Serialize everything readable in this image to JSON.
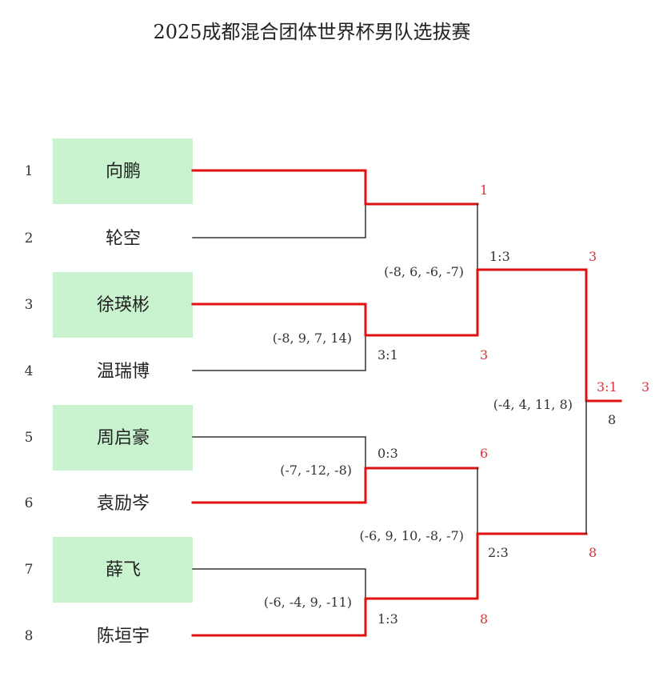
{
  "title": "2025成都混合团体世界杯男队选拔赛",
  "colors": {
    "winner_line": "#e01010",
    "loser_line": "#333333",
    "highlight_box": "#c9f2cf",
    "winner_text": "#d9343a"
  },
  "players": [
    {
      "seed": "1",
      "name": "向鹏",
      "highlight": true
    },
    {
      "seed": "2",
      "name": "轮空",
      "highlight": false
    },
    {
      "seed": "3",
      "name": "徐瑛彬",
      "highlight": true
    },
    {
      "seed": "4",
      "name": "温瑞博",
      "highlight": false
    },
    {
      "seed": "5",
      "name": "周启豪",
      "highlight": true
    },
    {
      "seed": "6",
      "name": "袁励岑",
      "highlight": false
    },
    {
      "seed": "7",
      "name": "薛飞",
      "highlight": true
    },
    {
      "seed": "8",
      "name": "陈垣宇",
      "highlight": false
    }
  ],
  "round1": [
    {
      "winner": "1",
      "score": "",
      "games": ""
    },
    {
      "winner": "3",
      "score": "3:1",
      "games": "(-8, 9, 7, 14)"
    },
    {
      "winner": "6",
      "score": "0:3",
      "games": "(-7, -12, -8)"
    },
    {
      "winner": "8",
      "score": "1:3",
      "games": "(-6, -4, 9, -11)"
    }
  ],
  "round2": [
    {
      "winner": "3",
      "score": "1:3",
      "games": "(-8, 6, -6, -7)"
    },
    {
      "winner": "8",
      "score": "2:3",
      "games": "(-6, 9, 10, -8, -7)"
    }
  ],
  "final": {
    "winner": "3",
    "score": "3:1",
    "games": "(-4, 4, 11, 8)",
    "loser": "8"
  }
}
